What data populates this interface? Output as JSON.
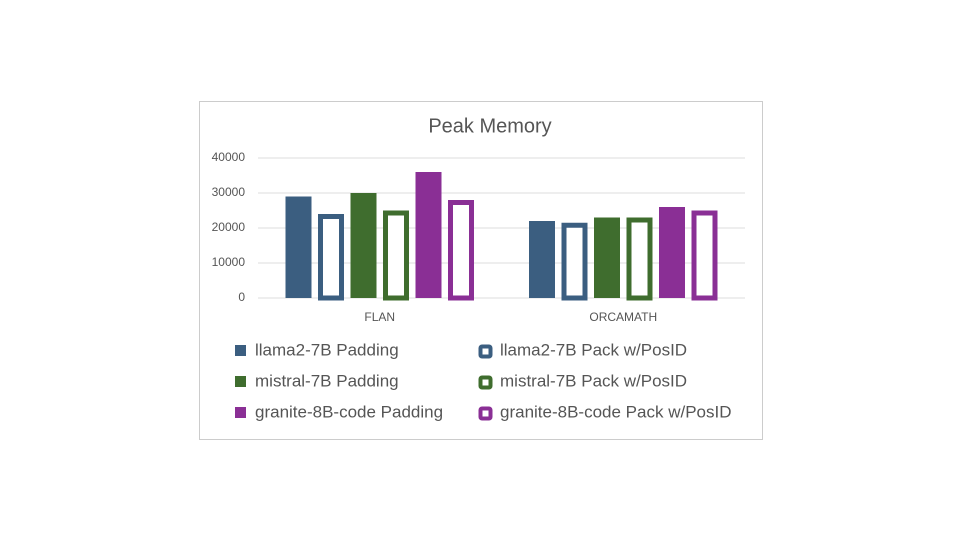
{
  "chart_data": {
    "type": "bar",
    "title": "Peak Memory",
    "categories": [
      "FLAN",
      "ORCAMATH"
    ],
    "series": [
      {
        "name": "llama2-7B Padding",
        "color": "#3b5e80",
        "fill": "solid",
        "values": [
          29000,
          22000
        ]
      },
      {
        "name": "llama2-7B Pack w/PosID",
        "color": "#3b5e80",
        "fill": "outline",
        "values": [
          24000,
          21500
        ]
      },
      {
        "name": "mistral-7B Padding",
        "color": "#3f6d2e",
        "fill": "solid",
        "values": [
          30000,
          23000
        ]
      },
      {
        "name": "mistral-7B Pack w/PosID",
        "color": "#3f6d2e",
        "fill": "outline",
        "values": [
          25000,
          23000
        ]
      },
      {
        "name": "granite-8B-code Padding",
        "color": "#8a2f95",
        "fill": "solid",
        "values": [
          36000,
          26000
        ]
      },
      {
        "name": "granite-8B-code Pack w/PosID",
        "color": "#8a2f95",
        "fill": "outline",
        "values": [
          28000,
          25000
        ]
      }
    ],
    "ylim": [
      0,
      40000
    ],
    "yticks": [
      0,
      10000,
      20000,
      30000,
      40000
    ],
    "grid": true,
    "legend": "bottom"
  }
}
